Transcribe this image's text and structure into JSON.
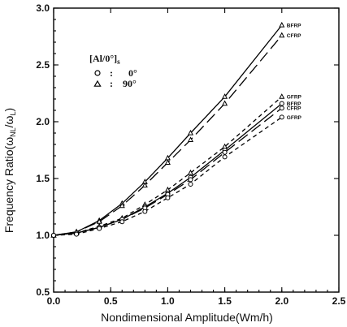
{
  "chart_data": {
    "type": "line",
    "title": "",
    "xlabel": "Nondimensional Amplitude(Wm/h)",
    "ylabel": "Frequency Ratio(ω_NL/ω_L)",
    "ylabel_parts": {
      "main": "Frequency Ratio(",
      "omega1": "ω",
      "sub1": "NL",
      "slash": "/",
      "omega2": "ω",
      "sub2": "L",
      "close": ")"
    },
    "xlim": [
      0.0,
      2.5
    ],
    "ylim": [
      0.5,
      3.0
    ],
    "xticks": [
      "0.0",
      "0.5",
      "1.0",
      "1.5",
      "2.0",
      "2.5"
    ],
    "yticks": [
      "0.5",
      "1.0",
      "1.5",
      "2.0",
      "2.5",
      "3.0"
    ],
    "grid": false,
    "legend": {
      "title": "[Al/0°]",
      "title_sub": "s",
      "placement": "top-left",
      "entries": [
        {
          "marker": "circle",
          "separator": ":",
          "label": "0°"
        },
        {
          "marker": "triangle",
          "separator": ":",
          "label": "90°"
        }
      ]
    },
    "series": [
      {
        "label": "BFRP",
        "marker": "triangle",
        "dash": "solid",
        "x": [
          0.0,
          0.2,
          0.4,
          0.6,
          0.8,
          1.0,
          1.2,
          1.5,
          2.0
        ],
        "y": [
          1.0,
          1.03,
          1.13,
          1.28,
          1.47,
          1.68,
          1.9,
          2.22,
          2.85
        ]
      },
      {
        "label": "CFRP",
        "marker": "triangle",
        "dash": "long",
        "x": [
          0.0,
          0.2,
          0.4,
          0.6,
          0.8,
          1.0,
          1.2,
          1.5,
          2.0
        ],
        "y": [
          1.0,
          1.03,
          1.12,
          1.26,
          1.44,
          1.64,
          1.84,
          2.16,
          2.76
        ]
      },
      {
        "label": "GFRP",
        "marker": "triangle",
        "dash": "short",
        "x": [
          0.0,
          0.2,
          0.4,
          0.6,
          0.8,
          1.0,
          1.2,
          1.5,
          2.0
        ],
        "y": [
          1.0,
          1.02,
          1.08,
          1.15,
          1.27,
          1.4,
          1.55,
          1.78,
          2.22
        ]
      },
      {
        "label": "BFRP",
        "marker": "circle",
        "dash": "solid",
        "x": [
          0.0,
          0.2,
          0.4,
          0.6,
          0.8,
          1.0,
          1.2,
          1.5,
          2.0
        ],
        "y": [
          1.0,
          1.02,
          1.07,
          1.14,
          1.25,
          1.37,
          1.51,
          1.75,
          2.16
        ]
      },
      {
        "label": "CFRP",
        "marker": "circle",
        "dash": "long",
        "x": [
          0.0,
          0.2,
          0.4,
          0.6,
          0.8,
          1.0,
          1.2,
          1.5,
          2.0
        ],
        "y": [
          1.0,
          1.02,
          1.07,
          1.14,
          1.24,
          1.36,
          1.49,
          1.73,
          2.12
        ]
      },
      {
        "label": "GFRP",
        "marker": "circle",
        "dash": "short",
        "x": [
          0.0,
          0.2,
          0.4,
          0.6,
          0.8,
          1.0,
          1.2,
          1.5,
          2.0
        ],
        "y": [
          1.0,
          1.01,
          1.06,
          1.12,
          1.21,
          1.33,
          1.45,
          1.69,
          2.04
        ]
      }
    ]
  }
}
